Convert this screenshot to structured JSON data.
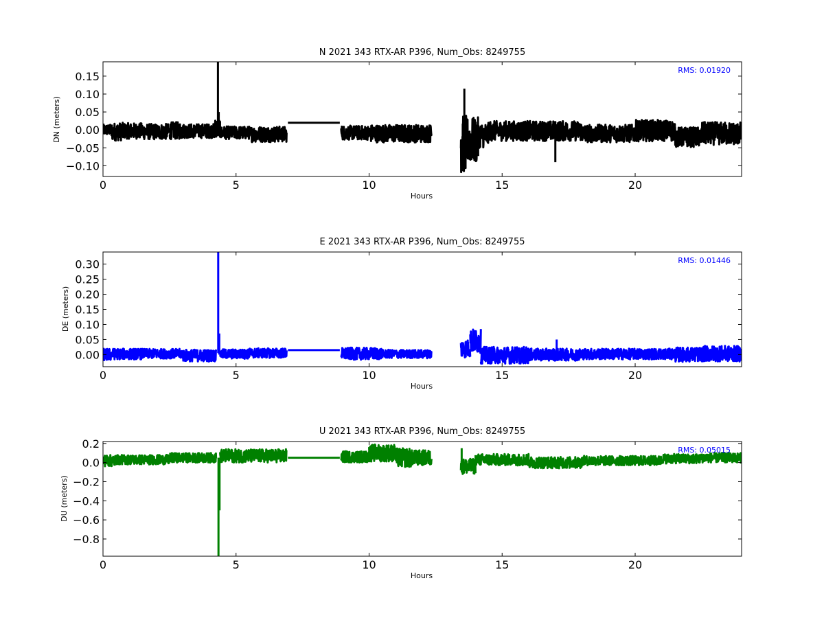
{
  "chart_data": [
    {
      "type": "line",
      "title": "N 2021 343 RTX-AR  P396, Num_Obs: 8249755",
      "xlabel": "Hours",
      "ylabel": "DN (meters)",
      "color": "#000000",
      "xlim": [
        0,
        24
      ],
      "ylim": [
        -0.13,
        0.19
      ],
      "xticks": [
        0,
        5,
        10,
        15,
        20
      ],
      "xtick_labels": [
        "0",
        "5",
        "10",
        "15",
        "20"
      ],
      "yticks": [
        -0.1,
        -0.05,
        0.0,
        0.05,
        0.1,
        0.15
      ],
      "ytick_labels": [
        "−0.10",
        "−0.05",
        "0.00",
        "0.05",
        "0.10",
        "0.15"
      ],
      "rms_text": "RMS:  0.01920",
      "rms_color": "#0000ff",
      "noise": [
        [
          0.0,
          0.3,
          0,
          0.015
        ],
        [
          0.3,
          0.8,
          -0.005,
          0.025
        ],
        [
          0.8,
          1.5,
          -0.003,
          0.022
        ],
        [
          1.5,
          2.5,
          -0.005,
          0.022
        ],
        [
          2.5,
          3.0,
          -0.002,
          0.024
        ],
        [
          3.0,
          4.2,
          -0.003,
          0.02
        ],
        [
          4.2,
          4.4,
          0.005,
          0.025
        ],
        [
          4.4,
          5.5,
          -0.008,
          0.018
        ],
        [
          5.5,
          6.9,
          -0.012,
          0.022
        ],
        [
          8.95,
          10.0,
          -0.008,
          0.02
        ],
        [
          10.0,
          11.5,
          -0.01,
          0.025
        ],
        [
          11.5,
          12.35,
          -0.01,
          0.025
        ],
        [
          13.45,
          13.65,
          -0.04,
          0.08
        ],
        [
          13.65,
          14.1,
          -0.03,
          0.065
        ],
        [
          14.1,
          14.5,
          -0.015,
          0.035
        ],
        [
          14.5,
          18.0,
          -0.003,
          0.028
        ],
        [
          18.0,
          20.0,
          -0.01,
          0.025
        ],
        [
          20.0,
          21.5,
          -0.002,
          0.03
        ],
        [
          21.5,
          22.5,
          -0.02,
          0.028
        ],
        [
          22.5,
          24.0,
          -0.01,
          0.032
        ]
      ],
      "flat": [
        [
          6.95,
          8.9,
          0.02
        ]
      ],
      "spikes": [
        [
          4.32,
          -0.01,
          0.19
        ],
        [
          4.35,
          -0.01,
          0.05
        ],
        [
          13.58,
          -0.06,
          0.115
        ],
        [
          17.0,
          -0.09,
          0.0
        ]
      ]
    },
    {
      "type": "line",
      "title": "E 2021 343 RTX-AR  P396, Num_Obs: 8249755",
      "xlabel": "Hours",
      "ylabel": "DE (meters)",
      "color": "#0000ff",
      "xlim": [
        0,
        24
      ],
      "ylim": [
        -0.04,
        0.34
      ],
      "xticks": [
        0,
        5,
        10,
        15,
        20
      ],
      "xtick_labels": [
        "0",
        "5",
        "10",
        "15",
        "20"
      ],
      "yticks": [
        0.0,
        0.05,
        0.1,
        0.15,
        0.2,
        0.25,
        0.3
      ],
      "ytick_labels": [
        "0.00",
        "0.05",
        "0.10",
        "0.15",
        "0.20",
        "0.25",
        "0.30"
      ],
      "rms_text": "RMS:  0.01446",
      "rms_color": "#0000ff",
      "noise": [
        [
          0.0,
          0.3,
          0.0,
          0.02
        ],
        [
          0.3,
          1.5,
          0.002,
          0.018
        ],
        [
          1.5,
          3.0,
          0.003,
          0.016
        ],
        [
          3.0,
          4.25,
          -0.003,
          0.02
        ],
        [
          4.4,
          5.5,
          0.002,
          0.016
        ],
        [
          5.5,
          6.9,
          0.005,
          0.016
        ],
        [
          8.95,
          10.5,
          0.003,
          0.02
        ],
        [
          10.5,
          12.35,
          0.002,
          0.014
        ],
        [
          13.45,
          13.8,
          0.02,
          0.03
        ],
        [
          13.8,
          14.2,
          0.045,
          0.04
        ],
        [
          14.2,
          16.0,
          -0.002,
          0.028
        ],
        [
          16.0,
          18.0,
          0.0,
          0.02
        ],
        [
          18.0,
          21.5,
          0.002,
          0.018
        ],
        [
          21.5,
          22.5,
          0.0,
          0.024
        ],
        [
          22.5,
          24.0,
          0.003,
          0.026
        ]
      ],
      "flat": [
        [
          6.95,
          8.9,
          0.015
        ]
      ],
      "spikes": [
        [
          4.33,
          0.005,
          0.34
        ],
        [
          4.37,
          0.0,
          0.07
        ],
        [
          17.05,
          0.0,
          0.05
        ]
      ]
    },
    {
      "type": "line",
      "title": "U 2021 343 RTX-AR  P396, Num_Obs: 8249755",
      "xlabel": "Hours",
      "ylabel": "DU (meters)",
      "color": "#008000",
      "xlim": [
        0,
        24
      ],
      "ylim": [
        -0.98,
        0.22
      ],
      "xticks": [
        0,
        5,
        10,
        15,
        20
      ],
      "xtick_labels": [
        "0",
        "5",
        "10",
        "15",
        "20"
      ],
      "yticks": [
        -0.8,
        -0.6,
        -0.4,
        -0.2,
        0.0,
        0.2
      ],
      "ytick_labels": [
        "−0.8",
        "−0.6",
        "−0.4",
        "−0.2",
        "0.0",
        "0.2"
      ],
      "rms_text": "RMS:  0.05015",
      "rms_color": "#0000ff",
      "noise": [
        [
          0.0,
          0.5,
          0.02,
          0.06
        ],
        [
          0.5,
          2.5,
          0.03,
          0.05
        ],
        [
          2.5,
          4.25,
          0.05,
          0.05
        ],
        [
          4.4,
          6.9,
          0.07,
          0.07
        ],
        [
          8.95,
          10.0,
          0.06,
          0.06
        ],
        [
          10.0,
          11.0,
          0.1,
          0.09
        ],
        [
          11.0,
          11.6,
          0.05,
          0.1
        ],
        [
          11.6,
          12.35,
          0.05,
          0.08
        ],
        [
          13.45,
          14.0,
          -0.04,
          0.08
        ],
        [
          14.0,
          16.0,
          0.03,
          0.06
        ],
        [
          16.0,
          18.0,
          0.0,
          0.06
        ],
        [
          18.0,
          21.0,
          0.02,
          0.05
        ],
        [
          21.0,
          22.5,
          0.04,
          0.05
        ],
        [
          22.5,
          24.0,
          0.05,
          0.05
        ]
      ],
      "flat": [
        [
          6.95,
          8.9,
          0.05
        ]
      ],
      "spikes": [
        [
          4.34,
          0.05,
          -0.98
        ],
        [
          4.38,
          0.05,
          -0.5
        ],
        [
          13.48,
          0.0,
          0.15
        ]
      ]
    }
  ]
}
